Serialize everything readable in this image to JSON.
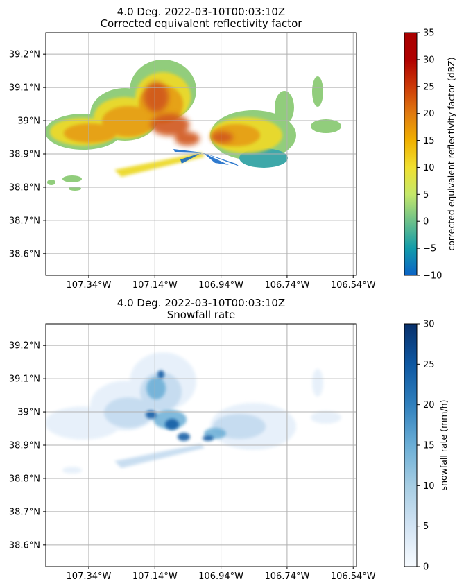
{
  "chart_data": [
    {
      "type": "heatmap",
      "title": "4.0 Deg. 2022-03-10T00:03:10Z",
      "subtitle": "Corrected equivalent reflectivity factor",
      "xlabel": "",
      "ylabel": "",
      "x_ticks": [
        -107.34,
        -107.14,
        -106.94,
        -106.74,
        -106.54
      ],
      "x_tick_labels": [
        "107.34°W",
        "107.14°W",
        "106.94°W",
        "106.74°W",
        "106.54°W"
      ],
      "y_ticks": [
        38.6,
        38.7,
        38.8,
        38.9,
        39.0,
        39.1,
        39.2
      ],
      "y_tick_labels": [
        "38.6°N",
        "38.7°N",
        "38.8°N",
        "38.9°N",
        "39°N",
        "39.1°N",
        "39.2°N"
      ],
      "xlim": [
        -107.47,
        -106.53
      ],
      "ylim": [
        38.535,
        39.265
      ],
      "grid": true,
      "radar_site": [
        -106.94,
        38.91
      ],
      "colorbar": {
        "label": "corrected equivalent reflectivity factor (dBZ)",
        "range": [
          -10,
          35
        ],
        "ticks": [
          -10,
          -5,
          0,
          5,
          10,
          15,
          20,
          25,
          30,
          35
        ],
        "tick_labels": [
          "−10",
          "−5",
          "0",
          "5",
          "10",
          "15",
          "20",
          "25",
          "30",
          "35"
        ],
        "colors": [
          "#0b63c6",
          "#129caa",
          "#6cc08a",
          "#c5e86a",
          "#f0e030",
          "#f0b000",
          "#e07a10",
          "#cc3a08",
          "#b00000",
          "#a80000"
        ]
      }
    },
    {
      "type": "heatmap",
      "title": "4.0 Deg. 2022-03-10T00:03:10Z",
      "subtitle": "Snowfall rate",
      "xlabel": "",
      "ylabel": "",
      "x_ticks": [
        -107.34,
        -107.14,
        -106.94,
        -106.74,
        -106.54
      ],
      "x_tick_labels": [
        "107.34°W",
        "107.14°W",
        "106.94°W",
        "106.74°W",
        "106.54°W"
      ],
      "y_ticks": [
        38.6,
        38.7,
        38.8,
        38.9,
        39.0,
        39.1,
        39.2
      ],
      "y_tick_labels": [
        "38.6°N",
        "38.7°N",
        "38.8°N",
        "38.9°N",
        "39°N",
        "39.1°N",
        "39.2°N"
      ],
      "xlim": [
        -107.47,
        -106.53
      ],
      "ylim": [
        38.535,
        39.265
      ],
      "grid": true,
      "radar_site": [
        -106.94,
        38.91
      ],
      "colorbar": {
        "label": "snowfall rate (mm/h)",
        "range": [
          0,
          30
        ],
        "ticks": [
          0,
          5,
          10,
          15,
          20,
          25,
          30
        ],
        "tick_labels": [
          "0",
          "5",
          "10",
          "15",
          "20",
          "25",
          "30"
        ],
        "colors": [
          "#f7fbff",
          "#d2e3f3",
          "#a6cde3",
          "#6aaed6",
          "#3080bd",
          "#0e58a2",
          "#08306b"
        ]
      }
    }
  ]
}
